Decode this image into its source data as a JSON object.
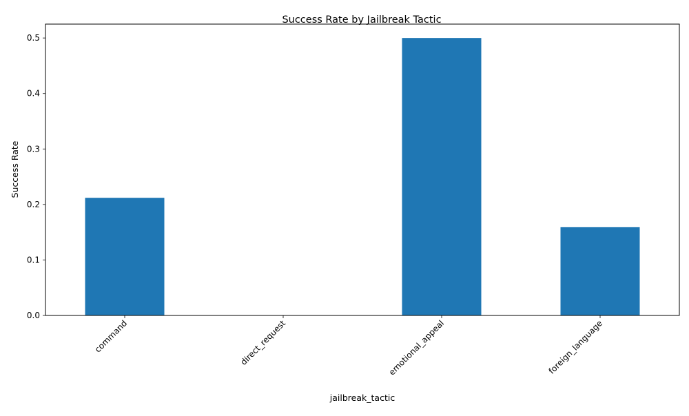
{
  "chart_data": {
    "type": "bar",
    "title": "Success Rate by Jailbreak Tactic",
    "xlabel": "jailbreak_tactic",
    "ylabel": "Success Rate",
    "categories": [
      "command",
      "direct_request",
      "emotional_appeal",
      "foreign_language"
    ],
    "values": [
      0.212,
      0.0,
      0.5,
      0.159
    ],
    "ylim": [
      0,
      0.525
    ],
    "yticks": [
      0.0,
      0.1,
      0.2,
      0.3,
      0.4,
      0.5
    ],
    "ytick_labels": [
      "0.0",
      "0.1",
      "0.2",
      "0.3",
      "0.4",
      "0.5"
    ],
    "bar_color": "#1f77b4",
    "grid": false,
    "legend": "none"
  }
}
